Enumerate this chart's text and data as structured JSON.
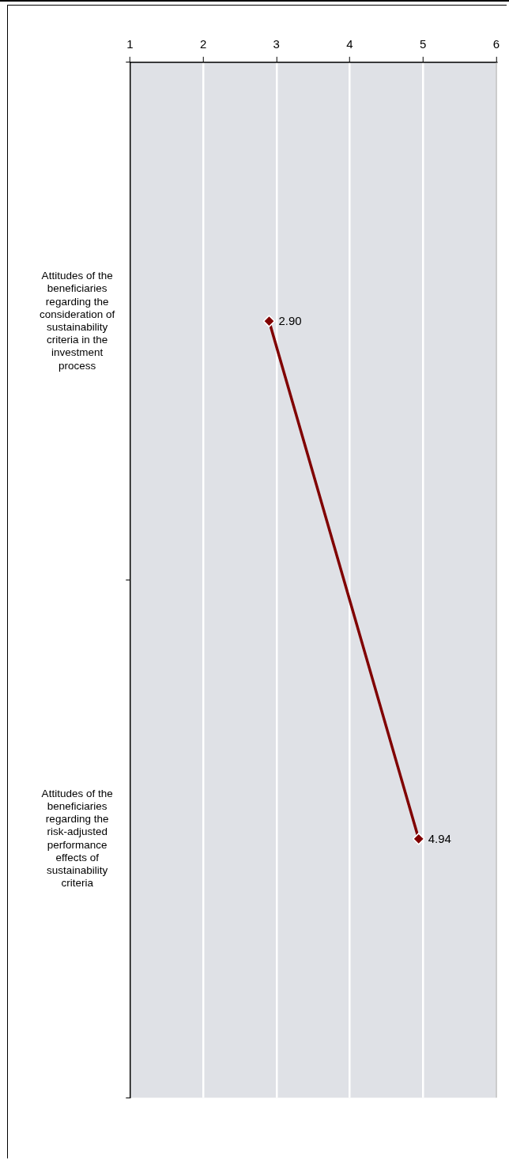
{
  "chart_data": {
    "type": "line",
    "orientation": "horizontal",
    "categories": [
      "Attitudes of the beneficiaries regarding the consideration of sustainability criteria in the investment process",
      "Attitudes of the beneficiaries regarding the risk-adjusted performance effects of sustainability criteria"
    ],
    "series": [
      {
        "color": "#800000",
        "values": [
          2.9,
          4.94
        ],
        "value_labels": [
          "2.90",
          "4.94"
        ]
      }
    ],
    "xlim": [
      1,
      6
    ],
    "xticks": [
      1,
      2,
      3,
      4,
      5,
      6
    ],
    "grid": "x",
    "legend": false,
    "marker": "diamond",
    "line_style": "solid"
  }
}
